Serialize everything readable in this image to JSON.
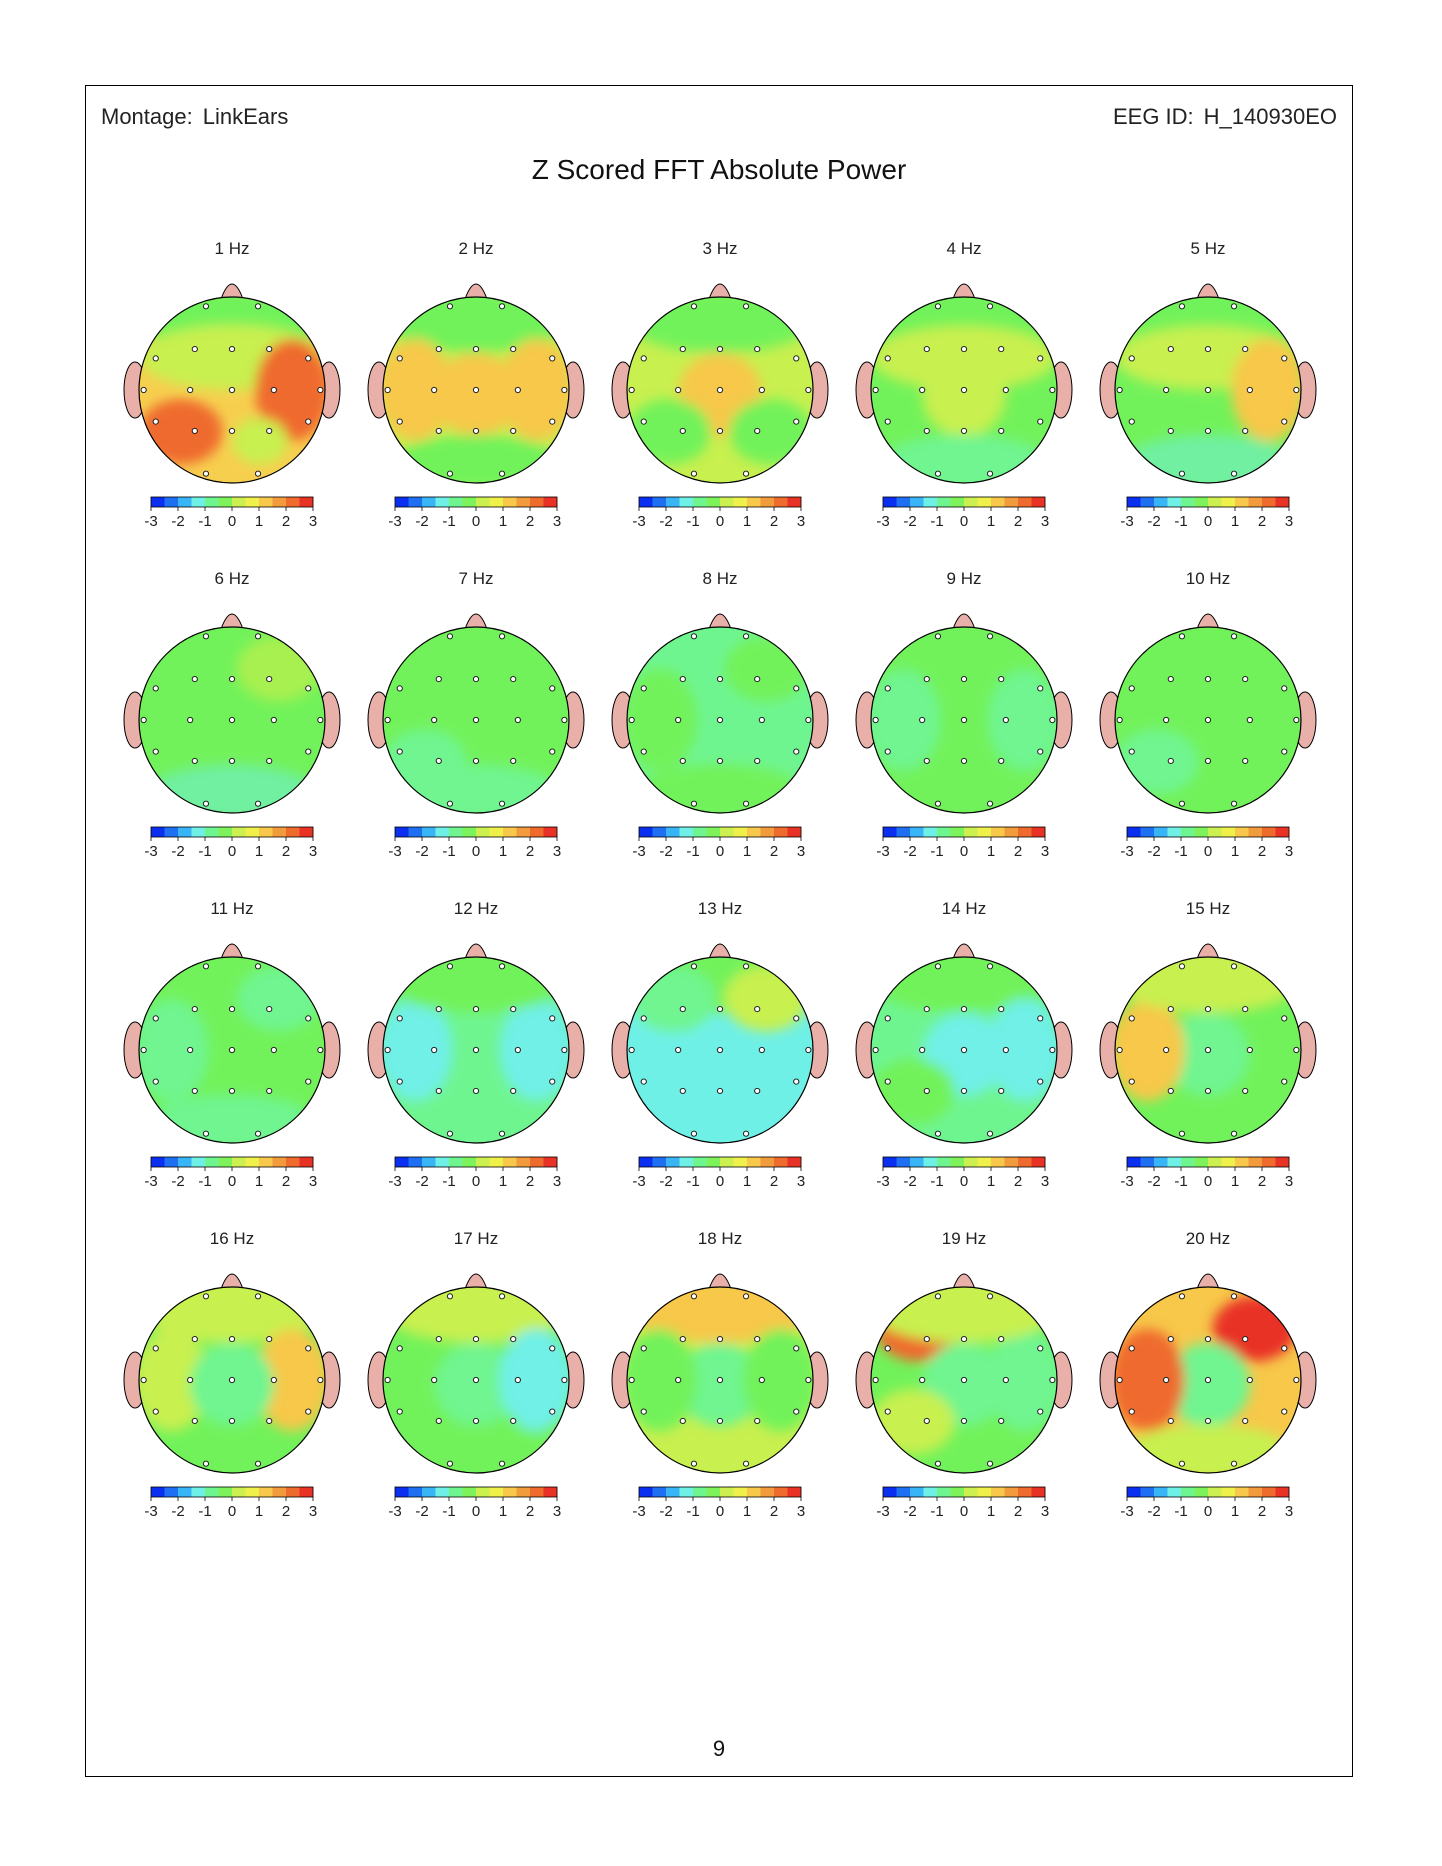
{
  "header": {
    "montage_label": "Montage:",
    "montage_value": "LinkEars",
    "eeg_id_label": "EEG ID:",
    "eeg_id_value": "H_140930EO"
  },
  "title": "Z Scored FFT Absolute Power",
  "page_number": "9",
  "colorbar": {
    "ticks": [
      "-3",
      "-2",
      "-1",
      "0",
      "1",
      "2",
      "3"
    ],
    "colors": [
      "#0a2ff0",
      "#1f6ff2",
      "#38b5f7",
      "#6ff0e6",
      "#6ff590",
      "#7df25a",
      "#cbf04f",
      "#f0f04b",
      "#f7c84a",
      "#f29b3d",
      "#ef6b2d",
      "#e93226"
    ]
  },
  "colors": {
    "head_base": "#72f25a",
    "nose_ear": "#e8b0a8",
    "outline": "#000000"
  },
  "maps": [
    {
      "label": "1 Hz",
      "base": "#f7cf4f",
      "blobs": [
        {
          "p": "top",
          "c": "#72f25a"
        },
        {
          "p": "upper",
          "c": "#c8f04f"
        },
        {
          "p": "right-mid",
          "c": "#ef6b2d"
        },
        {
          "p": "left-low",
          "c": "#ef6b2d"
        },
        {
          "p": "low-center",
          "c": "#c8f04f"
        }
      ]
    },
    {
      "label": "2 Hz",
      "base": "#c8f04f",
      "blobs": [
        {
          "p": "top",
          "c": "#72f25a"
        },
        {
          "p": "left-mid",
          "c": "#f7c84a"
        },
        {
          "p": "right-mid",
          "c": "#f7c84a"
        },
        {
          "p": "center",
          "c": "#f7c84a"
        },
        {
          "p": "bottom",
          "c": "#72f25a"
        }
      ]
    },
    {
      "label": "3 Hz",
      "base": "#c8f04f",
      "blobs": [
        {
          "p": "top",
          "c": "#72f25a"
        },
        {
          "p": "center",
          "c": "#f7c84a"
        },
        {
          "p": "left-low",
          "c": "#72f25a"
        },
        {
          "p": "right-low",
          "c": "#72f25a"
        }
      ]
    },
    {
      "label": "4 Hz",
      "base": "#72f25a",
      "blobs": [
        {
          "p": "upper",
          "c": "#c8f04f"
        },
        {
          "p": "center",
          "c": "#c8f04f"
        },
        {
          "p": "bottom",
          "c": "#6ff590"
        }
      ]
    },
    {
      "label": "5 Hz",
      "base": "#72f25a",
      "blobs": [
        {
          "p": "upper",
          "c": "#c8f04f"
        },
        {
          "p": "right-mid",
          "c": "#f7c84a"
        },
        {
          "p": "bottom",
          "c": "#6ff0a0"
        }
      ]
    },
    {
      "label": "6 Hz",
      "base": "#72f25a",
      "blobs": [
        {
          "p": "right-upper",
          "c": "#a8f050"
        },
        {
          "p": "bottom",
          "c": "#6ff0a0"
        }
      ]
    },
    {
      "label": "7 Hz",
      "base": "#72f25a",
      "blobs": [
        {
          "p": "bottom",
          "c": "#6ff590"
        },
        {
          "p": "left-low",
          "c": "#6ff590"
        }
      ]
    },
    {
      "label": "8 Hz",
      "base": "#6ff590",
      "blobs": [
        {
          "p": "right-upper",
          "c": "#72f25a"
        },
        {
          "p": "bottom",
          "c": "#72f25a"
        },
        {
          "p": "left-mid",
          "c": "#72f25a"
        }
      ]
    },
    {
      "label": "9 Hz",
      "base": "#72f25a",
      "blobs": [
        {
          "p": "left-mid",
          "c": "#6ff590"
        },
        {
          "p": "right-mid",
          "c": "#6ff590"
        }
      ]
    },
    {
      "label": "10 Hz",
      "base": "#72f25a",
      "blobs": [
        {
          "p": "left-low",
          "c": "#6ff590"
        }
      ]
    },
    {
      "label": "11 Hz",
      "base": "#72f25a",
      "blobs": [
        {
          "p": "left-mid",
          "c": "#6ff590"
        },
        {
          "p": "right-upper",
          "c": "#6ff590"
        },
        {
          "p": "bottom",
          "c": "#6ff590"
        }
      ]
    },
    {
      "label": "12 Hz",
      "base": "#6ff590",
      "blobs": [
        {
          "p": "left-mid",
          "c": "#6ff0e6"
        },
        {
          "p": "right-mid",
          "c": "#6ff0e6"
        },
        {
          "p": "top",
          "c": "#72f25a"
        }
      ]
    },
    {
      "label": "13 Hz",
      "base": "#6ff0e6",
      "blobs": [
        {
          "p": "top",
          "c": "#72f25a"
        },
        {
          "p": "left-upper",
          "c": "#6ff590"
        },
        {
          "p": "right-upper",
          "c": "#c8f04f"
        }
      ]
    },
    {
      "label": "14 Hz",
      "base": "#6ff590",
      "blobs": [
        {
          "p": "top",
          "c": "#72f25a"
        },
        {
          "p": "center",
          "c": "#6ff0e6"
        },
        {
          "p": "right-mid",
          "c": "#6ff0e6"
        },
        {
          "p": "left-low",
          "c": "#72f25a"
        }
      ]
    },
    {
      "label": "15 Hz",
      "base": "#72f25a",
      "blobs": [
        {
          "p": "center",
          "c": "#6ff590"
        },
        {
          "p": "left-mid",
          "c": "#f7c84a"
        },
        {
          "p": "top",
          "c": "#c8f04f"
        }
      ]
    },
    {
      "label": "16 Hz",
      "base": "#72f25a",
      "blobs": [
        {
          "p": "top",
          "c": "#c8f04f"
        },
        {
          "p": "right-mid",
          "c": "#f7c84a"
        },
        {
          "p": "left-mid",
          "c": "#c8f04f"
        },
        {
          "p": "center",
          "c": "#6ff590"
        }
      ]
    },
    {
      "label": "17 Hz",
      "base": "#72f25a",
      "blobs": [
        {
          "p": "top",
          "c": "#c8f04f"
        },
        {
          "p": "center",
          "c": "#6ff590"
        },
        {
          "p": "right-mid",
          "c": "#6ff0e6"
        },
        {
          "p": "bottom",
          "c": "#72f25a"
        }
      ]
    },
    {
      "label": "18 Hz",
      "base": "#c8f04f",
      "blobs": [
        {
          "p": "top",
          "c": "#f7c84a"
        },
        {
          "p": "center",
          "c": "#6ff590"
        },
        {
          "p": "right-mid",
          "c": "#72f25a"
        },
        {
          "p": "left-mid",
          "c": "#72f25a"
        }
      ]
    },
    {
      "label": "19 Hz",
      "base": "#72f25a",
      "blobs": [
        {
          "p": "left-upper",
          "c": "#ef6b2d"
        },
        {
          "p": "center",
          "c": "#6ff590"
        },
        {
          "p": "right-mid",
          "c": "#6ff590"
        },
        {
          "p": "left-low",
          "c": "#c8f04f"
        },
        {
          "p": "top",
          "c": "#c8f04f"
        }
      ]
    },
    {
      "label": "20 Hz",
      "base": "#f7c84a",
      "blobs": [
        {
          "p": "right-upper",
          "c": "#e93226"
        },
        {
          "p": "center",
          "c": "#72f25a"
        },
        {
          "p": "center",
          "c": "#6ff590"
        },
        {
          "p": "left-mid",
          "c": "#ef6b2d"
        },
        {
          "p": "bottom",
          "c": "#c8f04f"
        }
      ]
    }
  ]
}
